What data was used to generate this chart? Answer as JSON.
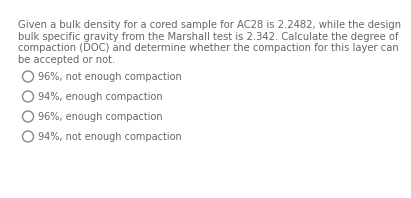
{
  "background_color": "#ffffff",
  "question_lines": [
    "Given a bulk density for a cored sample for AC28 is 2.2482, while the design",
    "bulk specific gravity from the Marshall test is 2.342. Calculate the degree of",
    "compaction (DOC) and determine whether the compaction for this layer can",
    "be accepted or not."
  ],
  "options": [
    "96%, not enough compaction",
    "94%, enough compaction",
    "96%, enough compaction",
    "94%, not enough compaction"
  ],
  "question_fontsize": 7.2,
  "option_fontsize": 7.0,
  "text_color": "#666666",
  "circle_color": "#888888",
  "circle_lw": 1.0
}
